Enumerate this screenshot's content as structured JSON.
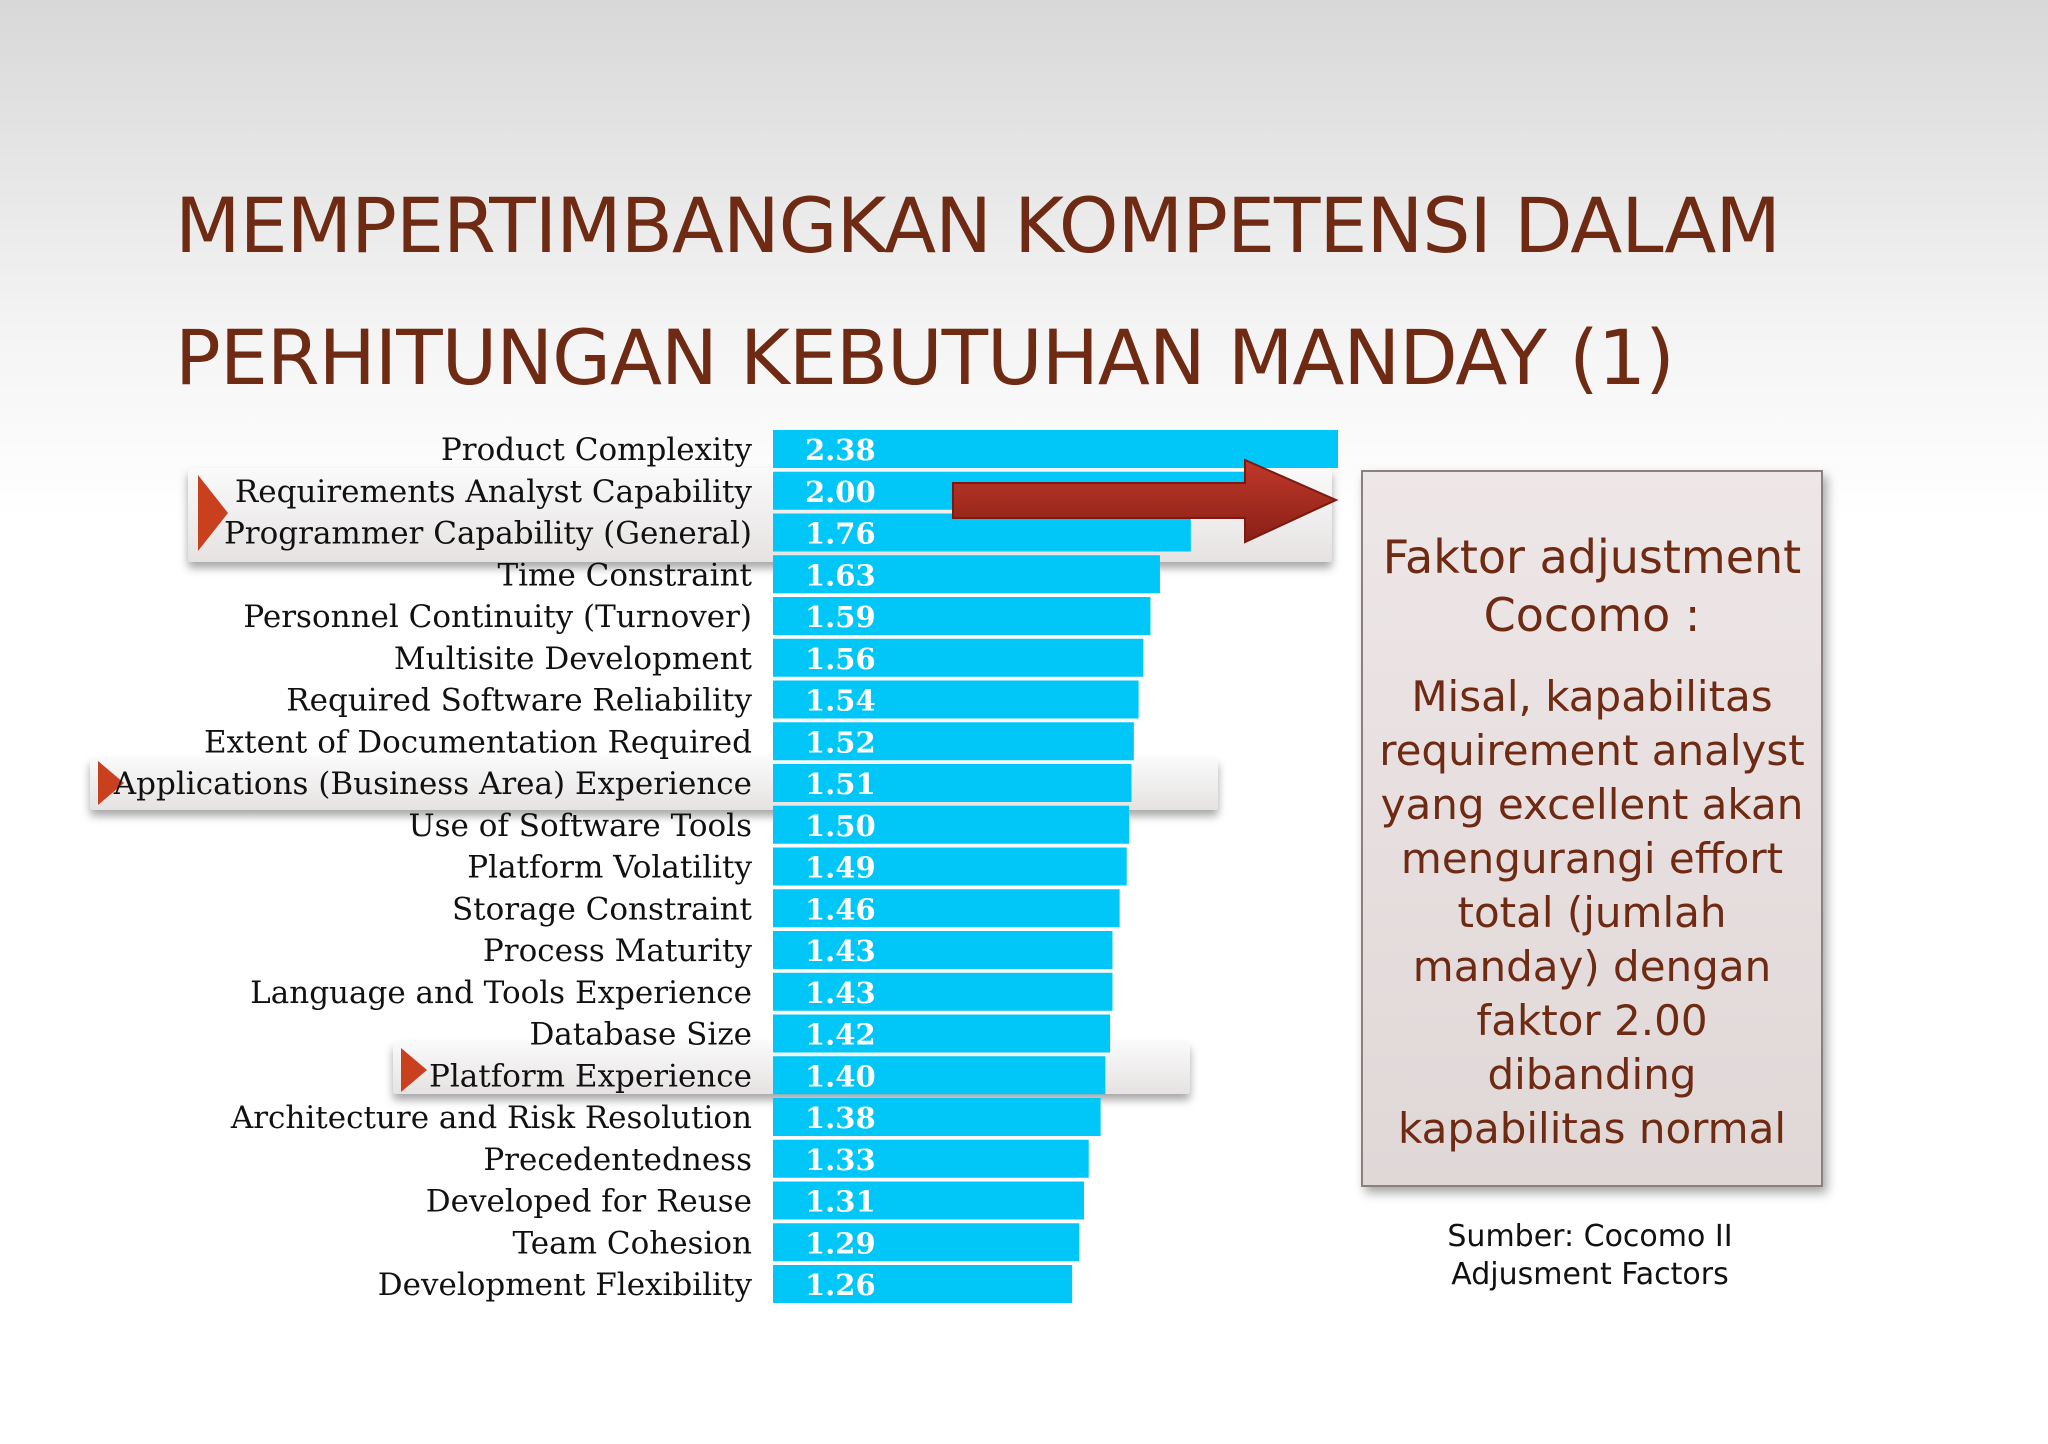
{
  "title": {
    "line1": "MEMPERTIMBANGKAN KOMPETENSI DALAM",
    "line2": "PERHITUNGAN KEBUTUHAN MANDAY (1)"
  },
  "chart_data": {
    "type": "bar",
    "orientation": "horizontal",
    "categories": [
      "Product Complexity",
      "Requirements Analyst Capability",
      "Programmer Capability (General)",
      "Time Constraint",
      "Personnel Continuity (Turnover)",
      "Multisite Development",
      "Required Software Reliability",
      "Extent of Documentation Required",
      "Applications (Business Area) Experience",
      "Use of Software  Tools",
      "Platform Volatility",
      "Storage Constraint",
      "Process Maturity",
      "Language and Tools Experience",
      "Database Size",
      "Platform Experience",
      "Architecture and Risk Resolution",
      "Precedentedness",
      "Developed for Reuse",
      "Team Cohesion",
      "Development Flexibility"
    ],
    "values": [
      2.38,
      2.0,
      1.76,
      1.63,
      1.59,
      1.56,
      1.54,
      1.52,
      1.51,
      1.5,
      1.49,
      1.46,
      1.43,
      1.43,
      1.42,
      1.4,
      1.38,
      1.33,
      1.31,
      1.29,
      1.26
    ],
    "value_labels": [
      "2.38",
      "2.00",
      "1.76",
      "1.63",
      "1.59",
      "1.56",
      "1.54",
      "1.52",
      "1.51",
      "1.50",
      "1.49",
      "1.46",
      "1.43",
      "1.43",
      "1.42",
      "1.40",
      "1.38",
      "1.33",
      "1.31",
      "1.29",
      "1.26"
    ],
    "highlighted": [
      "Requirements Analyst Capability",
      "Programmer Capability (General)",
      "Applications (Business Area) Experience",
      "Platform Experience"
    ],
    "bar_color": "#00c7f7",
    "grid": false
  },
  "callout": {
    "heading": "Faktor adjustment Cocomo :",
    "body": "Misal, kapabilitas requirement analyst yang excellent akan mengurangi effort total (jumlah manday) dengan faktor 2.00 dibanding kapabilitas normal"
  },
  "source": {
    "line1": "Sumber: Cocomo II",
    "line2": "Adjusment Factors"
  },
  "colors": {
    "title": "#6e2a12",
    "arrow": "#a3271b",
    "marker": "#c8401e"
  }
}
